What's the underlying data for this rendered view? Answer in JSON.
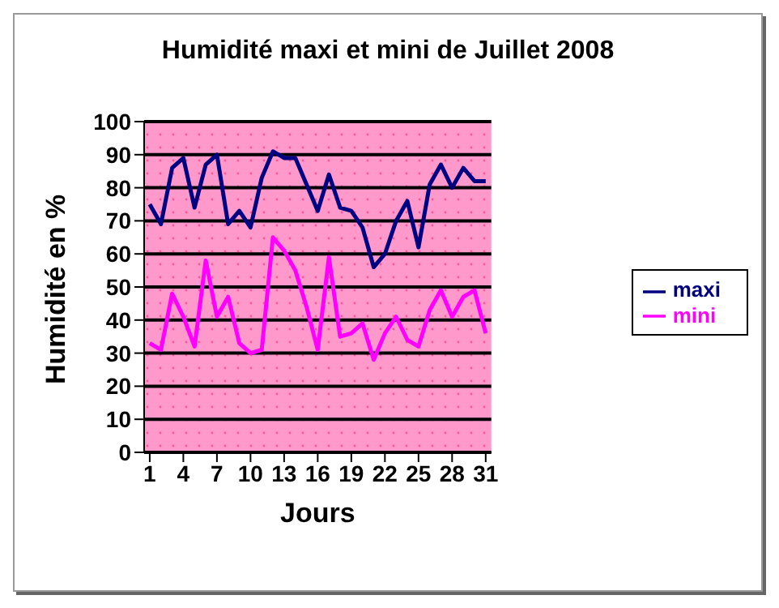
{
  "chart_data": {
    "type": "line",
    "title": "Humidité maxi et mini de Juillet 2008",
    "xlabel": "Jours",
    "ylabel": "Humidité en %",
    "x": [
      1,
      2,
      3,
      4,
      5,
      6,
      7,
      8,
      9,
      10,
      11,
      12,
      13,
      14,
      15,
      16,
      17,
      18,
      19,
      20,
      21,
      22,
      23,
      24,
      25,
      26,
      27,
      28,
      29,
      30,
      31
    ],
    "series": [
      {
        "name": "maxi",
        "color": "#000080",
        "values": [
          75,
          69,
          86,
          89,
          74,
          87,
          90,
          69,
          73,
          68,
          83,
          91,
          89,
          89,
          81,
          73,
          84,
          74,
          73,
          68,
          56,
          60,
          70,
          76,
          62,
          81,
          87,
          80,
          86,
          82,
          82
        ]
      },
      {
        "name": "mini",
        "color": "#ff00ff",
        "values": [
          33,
          31,
          48,
          41,
          32,
          58,
          41,
          47,
          33,
          30,
          31,
          65,
          61,
          55,
          44,
          31,
          59,
          35,
          36,
          39,
          28,
          36,
          41,
          34,
          32,
          43,
          49,
          41,
          47,
          49,
          36
        ]
      }
    ],
    "xlim": [
      0.5,
      31.5
    ],
    "xticks": [
      1,
      4,
      7,
      10,
      13,
      16,
      19,
      22,
      25,
      28,
      31
    ],
    "ylim": [
      0,
      100
    ],
    "yticks": [
      0,
      10,
      20,
      30,
      40,
      50,
      60,
      70,
      80,
      90,
      100
    ],
    "grid": "y",
    "legend": "right",
    "marker": "none",
    "line_style": "solid"
  }
}
